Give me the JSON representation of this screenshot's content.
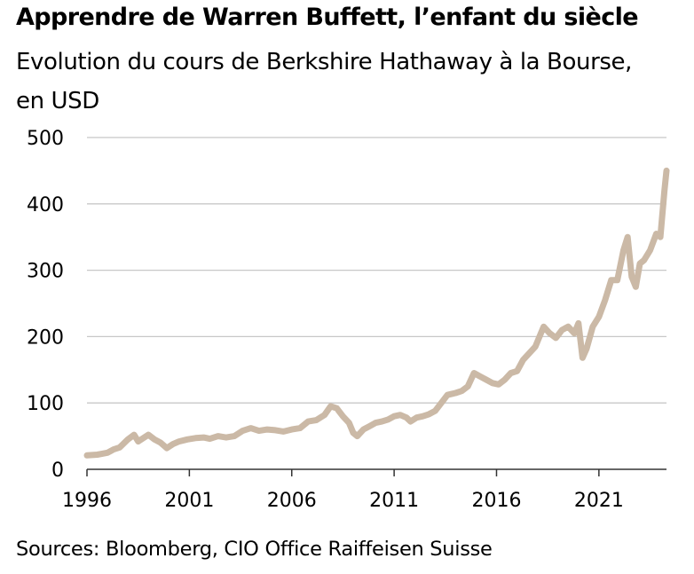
{
  "header": {
    "title": "Apprendre de Warren Buffett, l’enfant du siècle",
    "subtitle": "Evolution du cours de Berkshire Hathaway à la Bourse, en USD"
  },
  "footer": {
    "source": "Sources: Bloomberg, CIO Office Raiffeisen Suisse"
  },
  "colors": {
    "line": "#cbb9a6",
    "grid": "#c8c8c8",
    "axis": "#333333"
  },
  "chart_data": {
    "type": "line",
    "title": "Apprendre de Warren Buffett, l’enfant du siècle",
    "subtitle": "Evolution du cours de Berkshire Hathaway à la Bourse, en USD",
    "xlabel": "",
    "ylabel": "USD",
    "xlim": [
      1996,
      2024.3
    ],
    "ylim": [
      0,
      500
    ],
    "yticks": [
      0,
      100,
      200,
      300,
      400,
      500
    ],
    "xticks": [
      1996,
      2001,
      2006,
      2011,
      2016,
      2021
    ],
    "grid": "horizontal",
    "legend": "none",
    "series": [
      {
        "name": "Berkshire Hathaway",
        "x": [
          1996.0,
          1996.5,
          1997.0,
          1997.3,
          1997.6,
          1998.0,
          1998.3,
          1998.5,
          1998.8,
          1999.0,
          1999.3,
          1999.6,
          1999.9,
          2000.2,
          2000.5,
          2000.9,
          2001.3,
          2001.7,
          2002.0,
          2002.4,
          2002.8,
          2003.2,
          2003.6,
          2004.0,
          2004.4,
          2004.8,
          2005.2,
          2005.6,
          2006.0,
          2006.4,
          2006.8,
          2007.2,
          2007.6,
          2007.9,
          2008.2,
          2008.5,
          2008.8,
          2009.0,
          2009.2,
          2009.5,
          2009.8,
          2010.1,
          2010.4,
          2010.7,
          2011.0,
          2011.3,
          2011.6,
          2011.8,
          2012.1,
          2012.4,
          2012.7,
          2013.0,
          2013.3,
          2013.6,
          2014.0,
          2014.3,
          2014.6,
          2014.9,
          2015.2,
          2015.5,
          2015.8,
          2016.1,
          2016.4,
          2016.7,
          2017.0,
          2017.3,
          2017.6,
          2017.9,
          2018.1,
          2018.3,
          2018.6,
          2018.9,
          2019.2,
          2019.5,
          2019.8,
          2020.0,
          2020.2,
          2020.4,
          2020.7,
          2021.0,
          2021.3,
          2021.6,
          2021.9,
          2022.2,
          2022.4,
          2022.6,
          2022.8,
          2023.0,
          2023.2,
          2023.5,
          2023.8,
          2024.0,
          2024.2,
          2024.3
        ],
        "values": [
          21,
          22,
          25,
          30,
          33,
          45,
          52,
          42,
          48,
          52,
          45,
          40,
          32,
          38,
          42,
          45,
          47,
          48,
          46,
          50,
          48,
          50,
          58,
          62,
          58,
          60,
          59,
          57,
          60,
          62,
          72,
          74,
          82,
          95,
          92,
          80,
          70,
          55,
          50,
          60,
          65,
          70,
          72,
          75,
          80,
          82,
          78,
          72,
          78,
          80,
          83,
          88,
          100,
          112,
          115,
          118,
          125,
          145,
          140,
          135,
          130,
          128,
          135,
          145,
          148,
          165,
          175,
          185,
          200,
          215,
          205,
          198,
          210,
          215,
          205,
          220,
          168,
          182,
          215,
          230,
          255,
          285,
          285,
          330,
          350,
          290,
          275,
          310,
          315,
          330,
          355,
          350,
          420,
          450
        ]
      }
    ]
  }
}
